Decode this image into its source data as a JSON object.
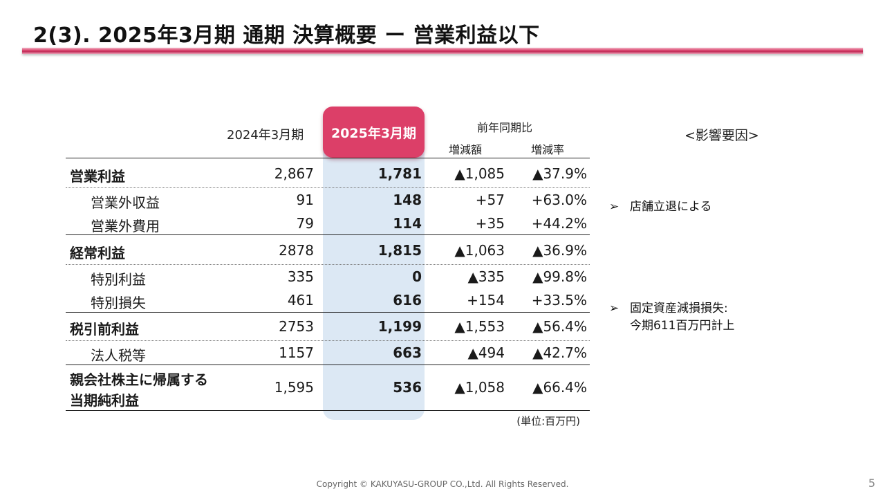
{
  "title": "2(3). 2025年3月期 通期 決算概要 ー 営業利益以下",
  "table": {
    "header_2024": "2024年3月期",
    "header_2025": "2025年3月期",
    "header_yoy": "前年同期比",
    "header_change_amount": "増減額",
    "header_change_rate": "増減率",
    "rows": [
      {
        "label": "営業利益",
        "y2024": "2,867",
        "y2025": "1,781",
        "change": "▲1,085",
        "rate": "▲37.9%"
      },
      {
        "label": "営業外収益",
        "y2024": "91",
        "y2025": "148",
        "change": "+57",
        "rate": "+63.0%"
      },
      {
        "label": "営業外費用",
        "y2024": "79",
        "y2025": "114",
        "change": "+35",
        "rate": "+44.2%"
      },
      {
        "label": "経常利益",
        "y2024": "2878",
        "y2025": "1,815",
        "change": "▲1,063",
        "rate": "▲36.9%"
      },
      {
        "label": "特別利益",
        "y2024": "335",
        "y2025": "0",
        "change": "▲335",
        "rate": "▲99.8%"
      },
      {
        "label": "特別損失",
        "y2024": "461",
        "y2025": "616",
        "change": "+154",
        "rate": "+33.5%"
      },
      {
        "label": "税引前利益",
        "y2024": "2753",
        "y2025": "1,199",
        "change": "▲1,553",
        "rate": "▲56.4%"
      },
      {
        "label": "法人税等",
        "y2024": "1157",
        "y2025": "663",
        "change": "▲494",
        "rate": "▲42.7%"
      },
      {
        "label_line1": "親会社株主に帰属する",
        "label_line2": "当期純利益",
        "y2024": "1,595",
        "y2025": "536",
        "change": "▲1,058",
        "rate": "▲66.4%"
      }
    ],
    "unit": "(単位:百万円)"
  },
  "factors": {
    "title": "<影響要因>",
    "bullet": "➢",
    "items": [
      {
        "line1": "店舗立退による"
      },
      {
        "line1": "固定資産減損損失:",
        "line2": "今期611百万円計上"
      }
    ]
  },
  "footer": "Copyright © KAKUYASU-GROUP CO.,Ltd. All Rights Reserved.",
  "page_number": "5"
}
